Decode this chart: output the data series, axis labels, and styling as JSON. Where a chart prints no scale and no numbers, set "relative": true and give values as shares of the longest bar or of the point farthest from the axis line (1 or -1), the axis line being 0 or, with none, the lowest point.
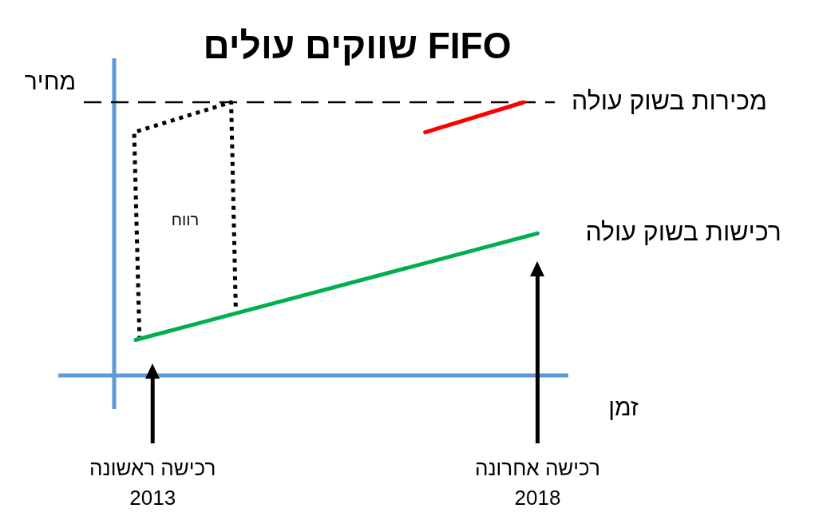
{
  "chart_data": {
    "type": "line",
    "title": "FIFO שווקים עולים",
    "xlabel": "זמן",
    "ylabel": "מחיר",
    "relative": true,
    "xlim": [
      2012.5,
      2018.4
    ],
    "xticks": [
      2013,
      2018
    ],
    "tick_labels": "x",
    "legend": false,
    "marker": "none",
    "line_style": "solid",
    "series": [
      {
        "name": "רכישות בשוק עולה",
        "color": "#00b050",
        "x": [
          2012.78,
          2018.0
        ],
        "values": [
          0.13,
          0.52
        ]
      },
      {
        "name": "מכירות בשוק עולה",
        "color": "#ff0000",
        "x": [
          2016.54,
          2017.82
        ],
        "values": [
          0.89,
          1.0
        ]
      },
      {
        "name": "רווח",
        "color": "#000000",
        "line_style": "dotted",
        "x": [
          2012.83,
          2012.76,
          2014.02,
          2014.08
        ],
        "values": [
          0.13,
          0.89,
          1.0,
          0.24
        ]
      }
    ],
    "ref_lines": [
      {
        "axis": "y",
        "value": 1,
        "color": "#000000",
        "line_style": "dashed"
      },
      {
        "axis": "x",
        "value": 2013,
        "label": "רכישה ראשונה",
        "color": "#000000",
        "line_style": "solid"
      },
      {
        "axis": "x",
        "value": 2018,
        "label": "רכישה אחרונה",
        "color": "#000000",
        "line_style": "solid"
      }
    ]
  }
}
